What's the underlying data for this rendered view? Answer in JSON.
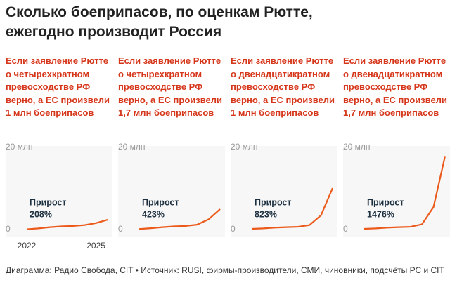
{
  "title": "Сколько боеприпасов, по оценкам Рютте, ежегодно производит Россия",
  "source": "Диаграмма: Радио Свобода, CIT • Источник: RUSI, фирмы-производители, СМИ, чиновники, подсчёты РС и CIT",
  "chart_data": [
    {
      "type": "line",
      "title": "Если заявление Рютте о четырехкратном превосходстве РФ верно, а ЕС произвели 1 млн боеприпасов",
      "annotation": [
        "Прирост",
        "208%"
      ],
      "x": [
        2022,
        2022.5,
        2023,
        2023.5,
        2024,
        2024.5,
        2025,
        2025.5
      ],
      "series": [
        {
          "color": "#ec5a1b",
          "values": [
            1.1,
            1.3,
            1.6,
            1.8,
            1.9,
            2.1,
            2.6,
            3.4
          ]
        }
      ],
      "xlim": [
        2022,
        2025.5
      ],
      "xticks": [
        2022,
        2025
      ],
      "ylim": [
        0,
        20
      ],
      "yticks": [
        0,
        {
          "value": 20,
          "label": "20 млн"
        }
      ]
    },
    {
      "type": "line",
      "title": "Если заявление Рютте о четырехкратном превосходстве РФ верно, а ЕС произвели 1,7 млн боеприпасов",
      "annotation": [
        "Прирост",
        "423%"
      ],
      "x": [
        2022,
        2022.5,
        2023,
        2023.5,
        2024,
        2024.5,
        2025,
        2025.5
      ],
      "series": [
        {
          "color": "#ec5a1b",
          "values": [
            1.15,
            1.35,
            1.6,
            1.8,
            1.9,
            2.2,
            3.5,
            6.0
          ]
        }
      ],
      "xlim": [
        2022,
        2025.5
      ],
      "ylim": [
        0,
        20
      ],
      "yticks": [
        0,
        {
          "value": 20,
          "label": "20 млн"
        }
      ]
    },
    {
      "type": "line",
      "title": "Если заявление Рютте о двенадцатикратном превосходстве РФ верно, а ЕС произвели 1 млн боеприпасов",
      "annotation": [
        "Прирост",
        "823%"
      ],
      "x": [
        2022,
        2022.5,
        2023,
        2023.5,
        2024,
        2024.5,
        2025,
        2025.5
      ],
      "series": [
        {
          "color": "#ec5a1b",
          "values": [
            1.2,
            1.3,
            1.5,
            1.6,
            1.7,
            2.1,
            4.5,
            11.1
          ]
        }
      ],
      "xlim": [
        2022,
        2025.5
      ],
      "ylim": [
        0,
        20
      ],
      "yticks": [
        0,
        {
          "value": 20,
          "label": "20 млн"
        }
      ]
    },
    {
      "type": "line",
      "title": "Если заявление Рютте о двенадцатикратном превосходстве РФ верно, а ЕС произвели 1,7 млн боеприпасов",
      "annotation": [
        "Прирост",
        "1476%"
      ],
      "x": [
        2022,
        2022.5,
        2023,
        2023.5,
        2024,
        2024.5,
        2025,
        2025.5
      ],
      "series": [
        {
          "color": "#ec5a1b",
          "values": [
            1.2,
            1.3,
            1.5,
            1.6,
            1.7,
            2.3,
            6.5,
            18.9
          ]
        }
      ],
      "xlim": [
        2022,
        2025.5
      ],
      "ylim": [
        0,
        20
      ],
      "yticks": [
        0,
        {
          "value": 20,
          "label": "20 млн"
        }
      ]
    }
  ]
}
